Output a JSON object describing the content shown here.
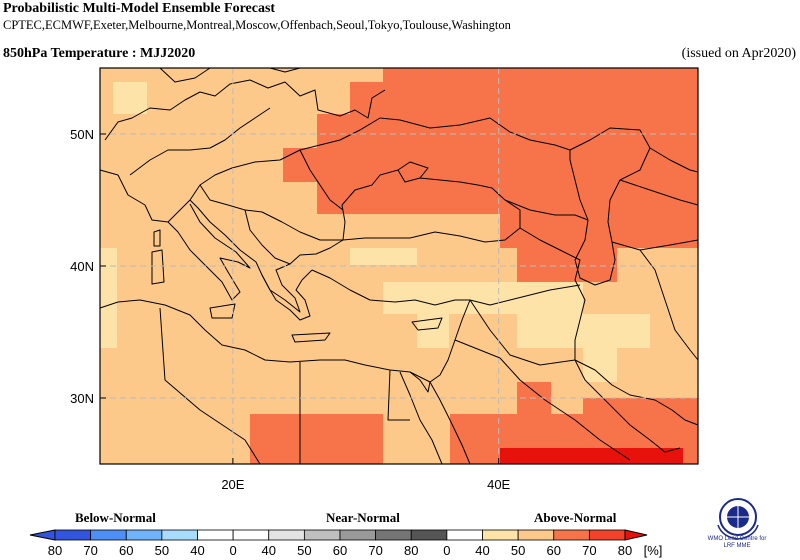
{
  "header": {
    "title": "Probabilistic Multi-Model Ensemble Forecast",
    "centres": "CPTEC,ECMWF,Exeter,Melbourne,Montreal,Moscow,Offenbach,Seoul,Tokyo,Toulouse,Washington",
    "subtitle": "850hPa Temperature : MJJ2020",
    "issued": "(issued on Apr2020)"
  },
  "map": {
    "lon_range": [
      10,
      55
    ],
    "lat_range": [
      25,
      55
    ],
    "lat_ticks": [
      {
        "value": 30,
        "label": "30N"
      },
      {
        "value": 40,
        "label": "40N"
      },
      {
        "value": 50,
        "label": "50N"
      }
    ],
    "lon_ticks": [
      {
        "value": 20,
        "label": "20E"
      },
      {
        "value": 40,
        "label": "40E"
      }
    ],
    "colors": {
      "above_40_50": "#fde3a7",
      "above_50_60": "#fcc98a",
      "above_60_70": "#f7744a",
      "above_70_80": "#e8120c"
    }
  },
  "legend": {
    "categories": {
      "below": "Below-Normal",
      "near": "Near-Normal",
      "above": "Above-Normal"
    },
    "unit": "[%]",
    "boxes": [
      {
        "color": "#3355dd"
      },
      {
        "color": "#4d8ff5"
      },
      {
        "color": "#6fb3fb"
      },
      {
        "color": "#a8dcfd"
      },
      {
        "color": "#ffffff"
      },
      {
        "color": "#ffffff"
      },
      {
        "color": "#e4e4e4"
      },
      {
        "color": "#bfbfbf"
      },
      {
        "color": "#9a9a9a"
      },
      {
        "color": "#757575"
      },
      {
        "color": "#555555"
      },
      {
        "color": "#ffffff"
      },
      {
        "color": "#fde3a7"
      },
      {
        "color": "#fcc98a"
      },
      {
        "color": "#f7744a"
      },
      {
        "color": "#f2422b"
      },
      {
        "color": "#e8120c"
      }
    ],
    "labels": [
      "80",
      "70",
      "60",
      "50",
      "40",
      "0",
      "40",
      "50",
      "60",
      "70",
      "80",
      "0",
      "40",
      "50",
      "60",
      "70",
      "80"
    ]
  },
  "logo": {
    "text_line1": "WMO Lead Centre for",
    "text_line2": "LRF MME"
  }
}
